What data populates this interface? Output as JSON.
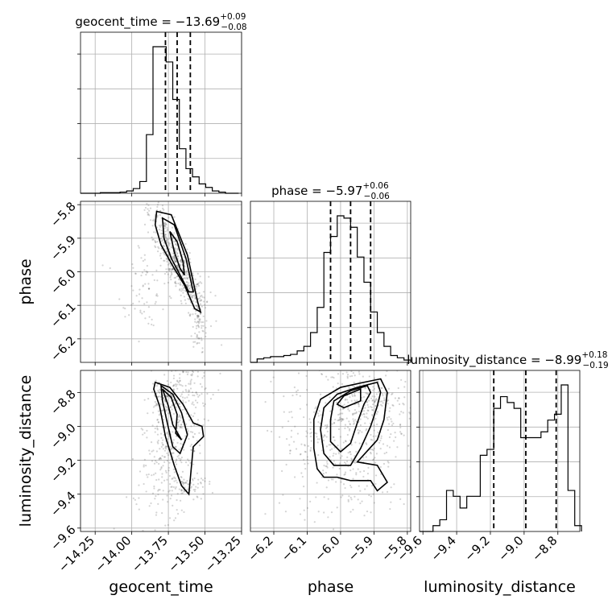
{
  "chart_data": {
    "type": "corner",
    "parameters": [
      {
        "name": "geocent_time",
        "label": "geocent_time",
        "title_prefix": "geocent_time = ",
        "median": "−13.69",
        "plus": "+0.09",
        "minus": "−0.08",
        "range": [
          -14.35,
          -13.25
        ],
        "ticks": [
          -14.25,
          -14.0,
          -13.75,
          -13.5,
          -13.25
        ],
        "tick_labels": [
          "−14.25",
          "−14.00",
          "−13.75",
          "−13.50",
          "−13.25"
        ],
        "quantiles": [
          -13.77,
          -13.69,
          -13.6
        ],
        "hist_edges": [
          -14.35,
          -14.305,
          -14.26,
          -14.215,
          -14.17,
          -14.125,
          -14.08,
          -14.035,
          -13.99,
          -13.945,
          -13.9,
          -13.855,
          -13.81,
          -13.765,
          -13.72,
          -13.675,
          -13.63,
          -13.585,
          -13.54,
          -13.495,
          -13.45,
          -13.405,
          -13.36,
          -13.315,
          -13.27
        ],
        "hist_counts": [
          0,
          0,
          0,
          0.5,
          0.5,
          0.5,
          1,
          2,
          4,
          10,
          50,
          125,
          125,
          112,
          80,
          38,
          21,
          14,
          8,
          5,
          2,
          1,
          0,
          0
        ]
      },
      {
        "name": "phase",
        "label": "phase",
        "title_prefix": "phase = ",
        "median": "−5.97",
        "plus": "+0.06",
        "minus": "−0.06",
        "range": [
          -6.27,
          -5.79
        ],
        "ticks": [
          -6.2,
          -6.1,
          -6.0,
          -5.9,
          -5.8
        ],
        "tick_labels": [
          "−6.2",
          "−6.1",
          "−6.0",
          "−5.9",
          "−5.8"
        ],
        "quantiles": [
          -6.03,
          -5.97,
          -5.91
        ],
        "hist_edges": [
          -6.27,
          -6.25,
          -6.23,
          -6.21,
          -6.19,
          -6.17,
          -6.15,
          -6.13,
          -6.11,
          -6.09,
          -6.07,
          -6.05,
          -6.03,
          -6.01,
          -5.99,
          -5.97,
          -5.95,
          -5.93,
          -5.91,
          -5.89,
          -5.87,
          -5.85,
          -5.83,
          -5.81,
          -5.79
        ],
        "hist_counts": [
          0,
          1.5,
          2,
          2.5,
          2.5,
          3,
          3.5,
          5,
          7,
          13,
          24,
          48,
          55,
          64,
          63,
          59,
          46,
          35,
          22,
          13,
          7,
          3,
          2,
          1
        ]
      },
      {
        "name": "luminosity_distance",
        "label": "luminosity_distance",
        "title_prefix": "luminosity_distance = ",
        "median": "−8.99",
        "plus": "+0.18",
        "minus": "−0.19",
        "range": [
          -9.62,
          -8.67
        ],
        "ticks": [
          -9.6,
          -9.4,
          -9.2,
          -9.0,
          -8.8
        ],
        "tick_labels": [
          "−9.6",
          "−9.4",
          "−9.2",
          "−9.0",
          "−8.8"
        ],
        "quantiles": [
          -9.18,
          -8.99,
          -8.81
        ],
        "hist_edges": [
          -9.62,
          -9.58,
          -9.54,
          -9.5,
          -9.46,
          -9.42,
          -9.38,
          -9.34,
          -9.3,
          -9.26,
          -9.22,
          -9.18,
          -9.14,
          -9.1,
          -9.06,
          -9.02,
          -8.98,
          -8.94,
          -8.9,
          -8.86,
          -8.82,
          -8.78,
          -8.74,
          -8.7,
          -8.66
        ],
        "hist_counts": [
          0,
          0,
          0.5,
          1,
          3.5,
          3,
          2,
          3,
          3,
          6.5,
          7,
          10.5,
          11.5,
          11,
          10.5,
          8,
          8,
          8,
          8.5,
          9.5,
          10,
          12.5,
          3.5,
          0.5
        ]
      }
    ],
    "contours": {
      "0-1": [
        [
          [
            -13.83,
            -5.82
          ],
          [
            -13.73,
            -5.83
          ],
          [
            -13.62,
            -5.95
          ],
          [
            -13.55,
            -6.09
          ],
          [
            -13.53,
            -6.12
          ],
          [
            -13.57,
            -6.11
          ],
          [
            -13.64,
            -6.04
          ],
          [
            -13.71,
            -5.99
          ],
          [
            -13.8,
            -5.92
          ],
          [
            -13.84,
            -5.86
          ]
        ],
        [
          [
            -13.79,
            -5.84
          ],
          [
            -13.71,
            -5.86
          ],
          [
            -13.63,
            -5.96
          ],
          [
            -13.58,
            -6.06
          ],
          [
            -13.61,
            -6.06
          ],
          [
            -13.67,
            -6.01
          ],
          [
            -13.73,
            -5.96
          ],
          [
            -13.78,
            -5.9
          ]
        ],
        [
          [
            -13.74,
            -5.88
          ],
          [
            -13.69,
            -5.91
          ],
          [
            -13.65,
            -5.97
          ],
          [
            -13.64,
            -6.01
          ],
          [
            -13.67,
            -5.99
          ],
          [
            -13.71,
            -5.94
          ]
        ]
      ],
      "0-2": [
        [
          [
            -13.84,
            -8.74
          ],
          [
            -13.74,
            -8.77
          ],
          [
            -13.65,
            -8.87
          ],
          [
            -13.58,
            -8.98
          ],
          [
            -13.52,
            -9.0
          ],
          [
            -13.51,
            -9.06
          ],
          [
            -13.58,
            -9.12
          ],
          [
            -13.61,
            -9.4
          ],
          [
            -13.66,
            -9.35
          ],
          [
            -13.71,
            -9.23
          ],
          [
            -13.77,
            -9.06
          ],
          [
            -13.81,
            -8.88
          ],
          [
            -13.85,
            -8.78
          ]
        ],
        [
          [
            -13.8,
            -8.76
          ],
          [
            -13.72,
            -8.81
          ],
          [
            -13.66,
            -8.92
          ],
          [
            -13.62,
            -9.05
          ],
          [
            -13.67,
            -9.16
          ],
          [
            -13.72,
            -9.12
          ],
          [
            -13.76,
            -8.97
          ],
          [
            -13.79,
            -8.85
          ]
        ],
        [
          [
            -13.79,
            -8.78
          ],
          [
            -13.73,
            -8.83
          ],
          [
            -13.69,
            -8.93
          ],
          [
            -13.7,
            -9.04
          ],
          [
            -13.66,
            -9.08
          ],
          [
            -13.72,
            -8.99
          ],
          [
            -13.75,
            -8.88
          ]
        ]
      ],
      "1-2": [
        [
          [
            -5.88,
            -8.72
          ],
          [
            -5.93,
            -8.74
          ],
          [
            -6.0,
            -8.77
          ],
          [
            -6.06,
            -8.84
          ],
          [
            -6.08,
            -8.96
          ],
          [
            -6.08,
            -9.13
          ],
          [
            -6.07,
            -9.25
          ],
          [
            -6.05,
            -9.3
          ],
          [
            -6.01,
            -9.3
          ],
          [
            -5.97,
            -9.32
          ],
          [
            -5.91,
            -9.32
          ],
          [
            -5.89,
            -9.38
          ],
          [
            -5.86,
            -9.33
          ],
          [
            -5.89,
            -9.23
          ],
          [
            -5.95,
            -9.21
          ],
          [
            -5.89,
            -9.08
          ],
          [
            -5.87,
            -8.96
          ],
          [
            -5.86,
            -8.8
          ]
        ],
        [
          [
            -5.89,
            -8.74
          ],
          [
            -5.95,
            -8.77
          ],
          [
            -6.01,
            -8.81
          ],
          [
            -6.05,
            -8.89
          ],
          [
            -6.06,
            -9.02
          ],
          [
            -6.05,
            -9.16
          ],
          [
            -6.02,
            -9.23
          ],
          [
            -5.97,
            -9.23
          ],
          [
            -5.94,
            -9.13
          ],
          [
            -5.91,
            -9.0
          ],
          [
            -5.89,
            -8.88
          ],
          [
            -5.88,
            -8.8
          ]
        ],
        [
          [
            -5.92,
            -8.76
          ],
          [
            -5.97,
            -8.79
          ],
          [
            -6.02,
            -8.85
          ],
          [
            -6.03,
            -8.96
          ],
          [
            -6.03,
            -9.09
          ],
          [
            -6.0,
            -9.15
          ],
          [
            -5.97,
            -9.1
          ],
          [
            -5.95,
            -8.98
          ],
          [
            -5.93,
            -8.87
          ],
          [
            -5.91,
            -8.8
          ]
        ],
        [
          [
            -5.94,
            -8.78
          ],
          [
            -5.99,
            -8.82
          ],
          [
            -6.01,
            -8.87
          ],
          [
            -5.99,
            -8.89
          ],
          [
            -5.94,
            -8.85
          ]
        ]
      ]
    }
  }
}
